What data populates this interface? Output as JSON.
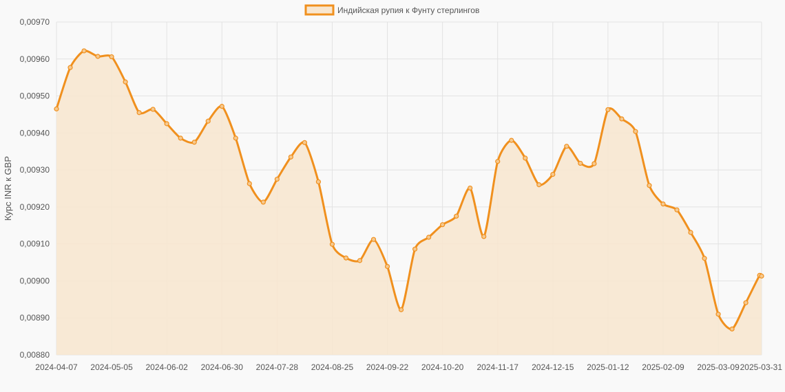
{
  "chart_data": {
    "type": "line",
    "fill": "area",
    "ylabel": "Курс INR к GBP",
    "xlabel": "",
    "ylim": [
      0.0088,
      0.0097
    ],
    "y_ticks": [
      "0,00880",
      "0,00890",
      "0,00900",
      "0,00910",
      "0,00920",
      "0,00930",
      "0,00940",
      "0,00950",
      "0,00960",
      "0,00970"
    ],
    "x_ticks": [
      "2024-04-07",
      "2024-05-05",
      "2024-06-02",
      "2024-06-30",
      "2024-07-28",
      "2024-08-25",
      "2024-09-22",
      "2024-10-20",
      "2024-11-17",
      "2024-12-15",
      "2025-01-12",
      "2025-02-09",
      "2025-03-09",
      "2025-03-31"
    ],
    "grid": true,
    "legend": "top-center",
    "colors": {
      "line": "#f0901e",
      "fill": "#f8e6cf",
      "grid": "#e2e2e2",
      "background": "#f9f9f9"
    },
    "series": [
      {
        "name": "Индийская рупия к Фунту стерлингов",
        "dates": [
          "2024-04-07",
          "2024-04-14",
          "2024-04-21",
          "2024-04-28",
          "2024-05-05",
          "2024-05-12",
          "2024-05-19",
          "2024-05-26",
          "2024-06-02",
          "2024-06-09",
          "2024-06-16",
          "2024-06-23",
          "2024-06-30",
          "2024-07-07",
          "2024-07-14",
          "2024-07-21",
          "2024-07-28",
          "2024-08-04",
          "2024-08-11",
          "2024-08-18",
          "2024-08-25",
          "2024-09-01",
          "2024-09-08",
          "2024-09-15",
          "2024-09-22",
          "2024-09-29",
          "2024-10-06",
          "2024-10-13",
          "2024-10-20",
          "2024-10-27",
          "2024-11-03",
          "2024-11-10",
          "2024-11-17",
          "2024-11-24",
          "2024-12-01",
          "2024-12-08",
          "2024-12-15",
          "2024-12-22",
          "2024-12-29",
          "2025-01-05",
          "2025-01-12",
          "2025-01-19",
          "2025-01-26",
          "2025-02-02",
          "2025-02-09",
          "2025-02-16",
          "2025-02-23",
          "2025-03-02",
          "2025-03-09",
          "2025-03-16",
          "2025-03-23",
          "2025-03-30",
          "2025-03-31"
        ],
        "values": [
          0.009465,
          0.009577,
          0.009622,
          0.009607,
          0.009606,
          0.009538,
          0.009455,
          0.009464,
          0.009425,
          0.009386,
          0.009375,
          0.009432,
          0.009472,
          0.009386,
          0.009263,
          0.009213,
          0.009275,
          0.009335,
          0.009374,
          0.009268,
          0.009099,
          0.009062,
          0.009055,
          0.009112,
          0.009039,
          0.008922,
          0.009086,
          0.009118,
          0.009152,
          0.009175,
          0.009251,
          0.00912,
          0.009323,
          0.00938,
          0.009332,
          0.00926,
          0.009288,
          0.009364,
          0.009318,
          0.009317,
          0.009463,
          0.009438,
          0.009404,
          0.009258,
          0.009208,
          0.009192,
          0.009131,
          0.009061,
          0.00891,
          0.00887,
          0.008941,
          0.009015,
          0.009013
        ]
      }
    ]
  }
}
